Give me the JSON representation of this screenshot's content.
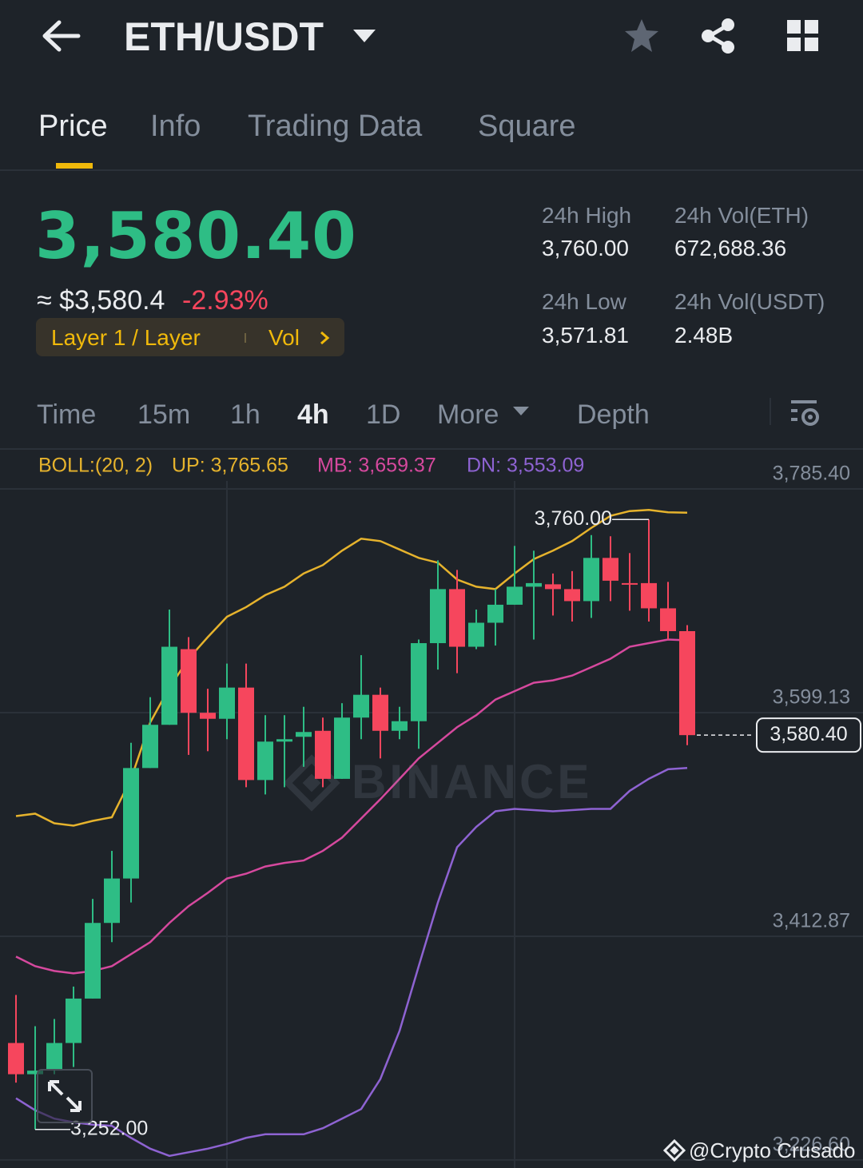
{
  "header": {
    "title": "ETH/USDT"
  },
  "tabs": [
    "Price",
    "Info",
    "Trading Data",
    "Square"
  ],
  "ticker": {
    "price": "3,580.40",
    "fiat": "≈ $3,580.4",
    "change": "-2.93%",
    "tag": "Layer 1 / Layer",
    "tag_link": "Vol"
  },
  "stats": [
    {
      "label": "24h High",
      "value": "3,760.00"
    },
    {
      "label": "24h Vol(ETH)",
      "value": "672,688.36"
    },
    {
      "label": "24h Low",
      "value": "3,571.81"
    },
    {
      "label": "24h Vol(USDT)",
      "value": "2.48B"
    }
  ],
  "intervals": [
    "Time",
    "15m",
    "1h",
    "4h",
    "1D",
    "More",
    "Depth"
  ],
  "chart_data": {
    "type": "candlestick",
    "indicator": "BOLL:(20, 2)",
    "open": [
      3324,
      3298,
      3301,
      3324,
      3361,
      3424,
      3461,
      3553,
      3589,
      3652,
      3599,
      3594,
      3620,
      3543,
      3575,
      3579,
      3584,
      3544,
      3595,
      3614,
      3584,
      3592,
      3657,
      3702,
      3654,
      3674,
      3689,
      3704,
      3706,
      3702,
      3692,
      3728,
      3707,
      3707,
      3686,
      3667
    ],
    "high": [
      3364,
      3338,
      3344,
      3371,
      3444,
      3484,
      3574,
      3612,
      3685,
      3662,
      3619,
      3640,
      3640,
      3597,
      3597,
      3604,
      3595,
      3607,
      3647,
      3620,
      3604,
      3660,
      3726,
      3718,
      3685,
      3702,
      3738,
      3734,
      3715,
      3717,
      3747,
      3746,
      3732,
      3760,
      3708,
      3672
    ],
    "low": [
      3291,
      3252,
      3298,
      3304,
      3361,
      3408,
      3441,
      3553,
      3589,
      3564,
      3567,
      3577,
      3537,
      3531,
      3537,
      3554,
      3537,
      3544,
      3577,
      3561,
      3577,
      3569,
      3635,
      3632,
      3652,
      3655,
      3689,
      3660,
      3680,
      3675,
      3678,
      3692,
      3684,
      3675,
      3660,
      3572
    ],
    "close": [
      3298,
      3301,
      3324,
      3361,
      3424,
      3461,
      3553,
      3589,
      3654,
      3599,
      3594,
      3620,
      3543,
      3575,
      3577,
      3583,
      3544,
      3595,
      3614,
      3584,
      3592,
      3657,
      3702,
      3654,
      3674,
      3689,
      3704,
      3707,
      3702,
      3692,
      3728,
      3709,
      3706,
      3686,
      3667,
      3580.4
    ],
    "up_color": "#2ebd85",
    "down_color": "#f6465d",
    "series": [
      {
        "name": "UP:",
        "color": "#e6b32d",
        "value_label": "3,765.65",
        "values": [
          3513,
          3515,
          3507,
          3505,
          3509,
          3512,
          3544,
          3591,
          3620,
          3644,
          3662,
          3679,
          3687,
          3697,
          3704,
          3715,
          3722,
          3734,
          3744,
          3742,
          3735,
          3728,
          3724,
          3710,
          3704,
          3702,
          3715,
          3727,
          3734,
          3742,
          3753,
          3763,
          3767,
          3768,
          3766,
          3765.65
        ]
      },
      {
        "name": "MB:",
        "color": "#d6499e",
        "value_label": "3,659.37",
        "values": [
          3396,
          3388,
          3384,
          3382,
          3384,
          3388,
          3398,
          3408,
          3424,
          3438,
          3449,
          3461,
          3465,
          3471,
          3474,
          3476,
          3484,
          3495,
          3511,
          3527,
          3544,
          3561,
          3574,
          3587,
          3597,
          3610,
          3617,
          3624,
          3626,
          3630,
          3637,
          3644,
          3654,
          3657,
          3660,
          3659.37
        ]
      },
      {
        "name": "DN:",
        "color": "#8e63d2",
        "value_label": "3,553.09",
        "values": [
          3278,
          3268,
          3261,
          3258,
          3256,
          3255,
          3245,
          3236,
          3230,
          3233,
          3236,
          3240,
          3245,
          3248,
          3248,
          3248,
          3253,
          3261,
          3269,
          3294,
          3334,
          3388,
          3441,
          3487,
          3504,
          3517,
          3519,
          3518,
          3517,
          3518,
          3519,
          3519,
          3534,
          3544,
          3552,
          3553.09
        ]
      }
    ],
    "ylim": [
      3219.9,
      3818.7
    ],
    "yticks": [
      {
        "value": 3785.4,
        "label": "3,785.40"
      },
      {
        "value": 3599.13,
        "label": "3,599.13"
      },
      {
        "value": 3412.87,
        "label": "3,412.87"
      },
      {
        "value": 3226.6,
        "label": "3,226.60"
      }
    ],
    "grid": true,
    "last_price": {
      "value": 3580.4,
      "label": "3,580.40"
    },
    "annotations": [
      {
        "value": 3760,
        "label": "3,760.00"
      },
      {
        "value": 3252,
        "label": "3,252.00"
      }
    ]
  },
  "watermark": "BINANCE",
  "credit": "@Crypto Crusado"
}
